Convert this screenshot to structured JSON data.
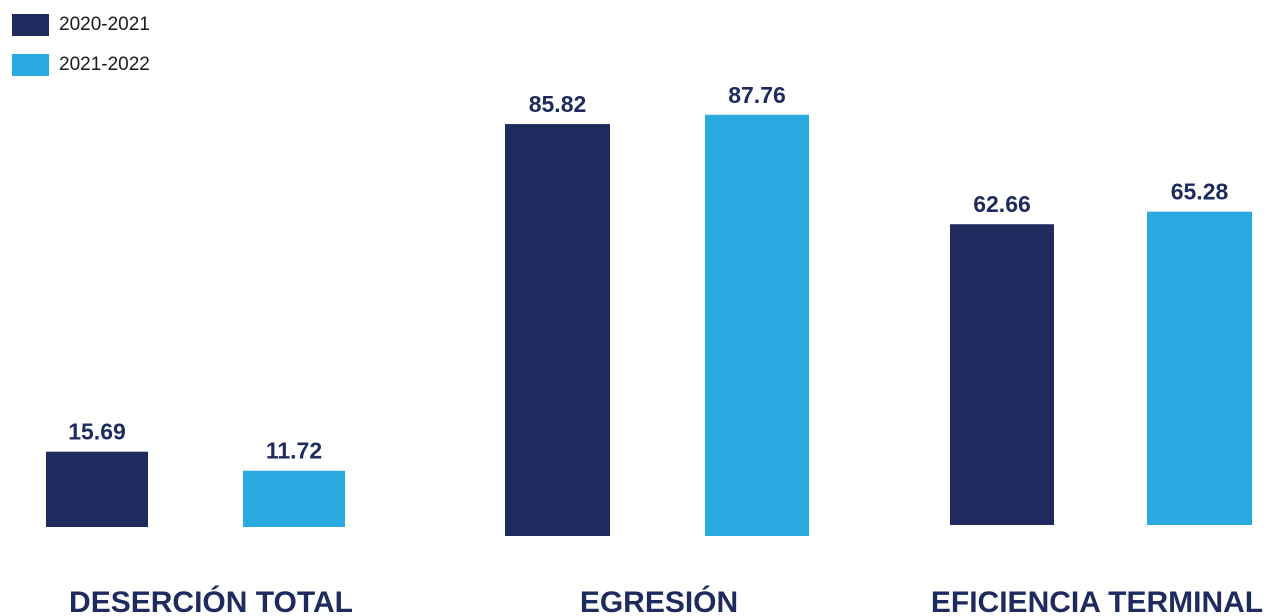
{
  "chart_data": {
    "type": "bar",
    "categories": [
      "DESERCIÓN TOTAL",
      "EGRESIÓN",
      "EFICIENCIA TERMINAL"
    ],
    "series": [
      {
        "name": "2020-2021",
        "color": "#1f2a5e",
        "values": [
          15.69,
          85.82,
          62.66
        ]
      },
      {
        "name": "2021-2022",
        "color": "#29abe2",
        "values": [
          11.72,
          87.76,
          65.28
        ]
      }
    ],
    "value_labels": [
      [
        "15.69",
        "11.72"
      ],
      [
        "85.82",
        "87.76"
      ],
      [
        "62.66",
        "65.28"
      ]
    ],
    "legend": "top-left",
    "grid": false,
    "label_color": "#1f2a5e"
  }
}
